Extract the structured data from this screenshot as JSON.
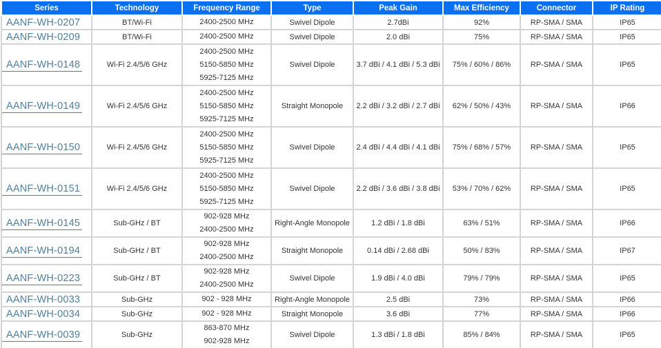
{
  "colors": {
    "header_bg": "#0b6ff2",
    "header_text": "#ffffff",
    "link": "#4e809e",
    "grid_border": "#d4d4d4",
    "body_text": "#333333"
  },
  "table": {
    "columns": [
      {
        "label": "Series"
      },
      {
        "label": "Technology"
      },
      {
        "label": "Frequency Range"
      },
      {
        "label": "Type"
      },
      {
        "label": "Peak Gain"
      },
      {
        "label": "Max Efficiency"
      },
      {
        "label": "Connector"
      },
      {
        "label": "IP Rating"
      }
    ],
    "rows": [
      {
        "series": "AANF-WH-0207",
        "technology": "BT/Wi-Fi",
        "frequencies": [
          "2400-2500 MHz"
        ],
        "type": "Swivel Dipole",
        "peak_gain": "2.7dBi",
        "max_efficiency": "92%",
        "connector": "RP-SMA / SMA",
        "ip_rating": "IP65"
      },
      {
        "series": "AANF-WH-0209",
        "technology": "BT/Wi-Fi",
        "frequencies": [
          "2400-2500 MHz"
        ],
        "type": "Swivel Dipole",
        "peak_gain": "2.0 dBi",
        "max_efficiency": "75%",
        "connector": "RP-SMA / SMA",
        "ip_rating": "IP65"
      },
      {
        "series": "AANF-WH-0148",
        "technology": "Wi-Fi 2.4/5/6 GHz",
        "frequencies": [
          "2400-2500 MHz",
          "5150-5850 MHz",
          "5925-7125 MHz"
        ],
        "type": "Swivel Dipole",
        "peak_gain": "3.7 dBi / 4.1 dBi / 5.3 dBi",
        "max_efficiency": "75% / 60% / 86%",
        "connector": "RP-SMA / SMA",
        "ip_rating": "IP65"
      },
      {
        "series": "AANF-WH-0149",
        "technology": "Wi-Fi 2.4/5/6 GHz",
        "frequencies": [
          "2400-2500 MHz",
          "5150-5850 MHz",
          "5925-7125 MHz"
        ],
        "type": "Straight Monopole",
        "peak_gain": "2.2 dBi / 3.2 dBi / 2.7 dBi",
        "max_efficiency": "62% / 50% / 43%",
        "connector": "RP-SMA / SMA",
        "ip_rating": "IP66"
      },
      {
        "series": "AANF-WH-0150",
        "technology": "Wi-Fi 2.4/5/6 GHz",
        "frequencies": [
          "2400-2500 MHz",
          "5150-5850 MHz",
          "5925-7125 MHz"
        ],
        "type": "Swivel Dipole",
        "peak_gain": "2.4 dBi / 4.4 dBi / 4.1 dBi",
        "max_efficiency": "75% / 68% / 57%",
        "connector": "RP-SMA / SMA",
        "ip_rating": "IP65"
      },
      {
        "series": "AANF-WH-0151",
        "technology": "Wi-Fi 2.4/5/6 GHz",
        "frequencies": [
          "2400-2500 MHz",
          "5150-5850 MHz",
          "5925-7125 MHz"
        ],
        "type": "Swivel Dipole",
        "peak_gain": "2.2 dBi / 3.6 dBi / 3.8 dBi",
        "max_efficiency": "53% / 70% / 62%",
        "connector": "RP-SMA / SMA",
        "ip_rating": "IP65"
      },
      {
        "series": "AANF-WH-0145",
        "technology": "Sub-GHz / BT",
        "frequencies": [
          "902-928 MHz",
          "2400-2500 MHz"
        ],
        "type": "Right-Angle Monopole",
        "peak_gain": "1.2 dBi / 1.8 dBi",
        "max_efficiency": "63% / 51%",
        "connector": "RP-SMA / SMA",
        "ip_rating": "IP66"
      },
      {
        "series": "AANF-WH-0194",
        "technology": "Sub-GHz / BT",
        "frequencies": [
          "902-928 MHz",
          "2400-2500 MHz"
        ],
        "type": "Straight Monopole",
        "peak_gain": "0.14 dBi / 2.68 dBi",
        "max_efficiency": "50% / 83%",
        "connector": "RP-SMA / SMA",
        "ip_rating": "IP67"
      },
      {
        "series": "AANF-WH-0223",
        "technology": "Sub-GHz / BT",
        "frequencies": [
          "902-928 MHz",
          "2400-2500 MHz"
        ],
        "type": "Swivel Dipole",
        "peak_gain": "1.9 dBi / 4.0 dBi",
        "max_efficiency": "79% / 79%",
        "connector": "RP-SMA / SMA",
        "ip_rating": "IP65"
      },
      {
        "series": "AANF-WH-0033",
        "technology": "Sub-GHz",
        "frequencies": [
          "902 - 928 MHz"
        ],
        "type": "Right-Angle Monopole",
        "peak_gain": "2.5 dBi",
        "max_efficiency": "73%",
        "connector": "RP-SMA / SMA",
        "ip_rating": "IP66"
      },
      {
        "series": "AANF-WH-0034",
        "technology": "Sub-GHz",
        "frequencies": [
          "902 - 928 MHz"
        ],
        "type": "Straight Monopole",
        "peak_gain": "3.6 dBi",
        "max_efficiency": "77%",
        "connector": "RP-SMA / SMA",
        "ip_rating": "IP66"
      },
      {
        "series": "AANF-WH-0039",
        "technology": "Sub-GHz",
        "frequencies": [
          "863-870 MHz",
          "902-928 MHz"
        ],
        "type": "Swivel Dipole",
        "peak_gain": "1.3 dBi / 1.8 dBi",
        "max_efficiency": "85% / 84%",
        "connector": "RP-SMA / SMA",
        "ip_rating": "IP65"
      }
    ]
  }
}
